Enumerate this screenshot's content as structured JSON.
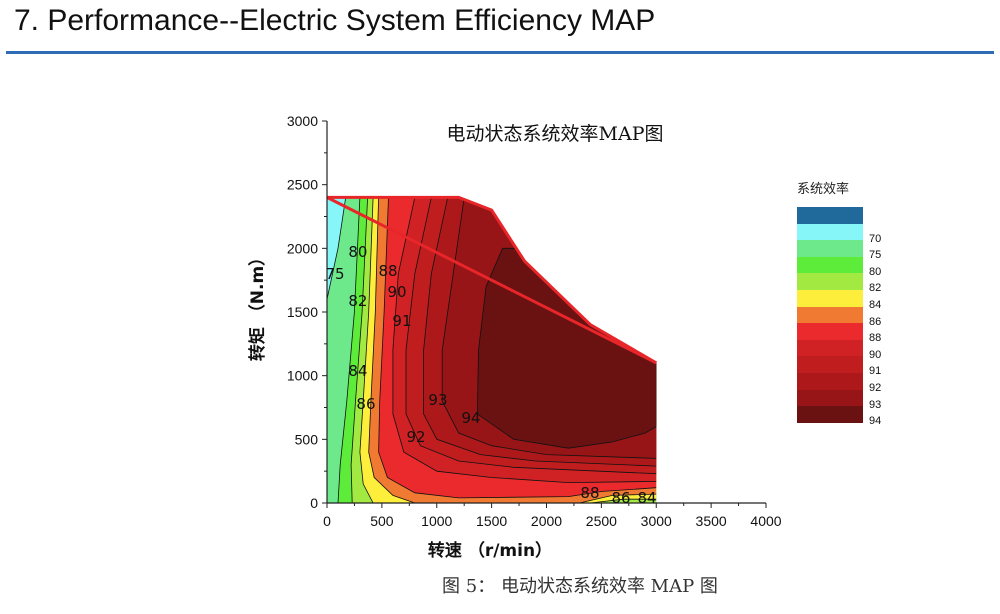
{
  "header": {
    "title": "7. Performance--Electric System Efficiency MAP",
    "rule_color": "#2e6cb5"
  },
  "caption": "图 5：  电动状态系统效率 MAP 图",
  "chart_data": {
    "type": "contour",
    "title": "电动状态系统效率MAP图",
    "xlabel": "转速 （r/min）",
    "ylabel": "转矩 （N.m）",
    "xlim": [
      0,
      4000
    ],
    "ylim": [
      0,
      3000
    ],
    "xticks": [
      "0",
      "500",
      "1000",
      "1500",
      "2000",
      "2500",
      "3000",
      "3500",
      "4000"
    ],
    "yticks": [
      "0",
      "500",
      "1000",
      "1500",
      "2000",
      "2500",
      "3000"
    ],
    "envelope": [
      [
        0,
        2400
      ],
      [
        1200,
        2400
      ],
      [
        1500,
        2300
      ],
      [
        1800,
        1900
      ],
      [
        2400,
        1400
      ],
      [
        3000,
        1100
      ],
      [
        3000,
        0
      ],
      [
        0,
        0
      ]
    ],
    "legend_title": "系统效率",
    "legend": [
      {
        "label": "",
        "color": "#1f6a9a"
      },
      {
        "label": "70",
        "color": "#86f6f8"
      },
      {
        "label": "75",
        "color": "#6de88a"
      },
      {
        "label": "80",
        "color": "#5eec3a"
      },
      {
        "label": "82",
        "color": "#a2ea42"
      },
      {
        "label": "84",
        "color": "#fdee3c"
      },
      {
        "label": "86",
        "color": "#f07a32"
      },
      {
        "label": "88",
        "color": "#ea2a2c"
      },
      {
        "label": "90",
        "color": "#d02224"
      },
      {
        "label": "91",
        "color": "#c01d1f"
      },
      {
        "label": "92",
        "color": "#ad191b"
      },
      {
        "label": "93",
        "color": "#971517"
      },
      {
        "label": "94",
        "color": "#6a1212"
      }
    ],
    "levels": [
      {
        "level": 75,
        "color": "#6de88a",
        "line": [
          [
            170,
            2400
          ],
          [
            100,
            2000
          ],
          [
            0,
            1600
          ]
        ]
      },
      {
        "level": 80,
        "color": "#5eec3a",
        "line": [
          [
            300,
            2400
          ],
          [
            250,
            1500
          ],
          [
            180,
            800
          ],
          [
            120,
            300
          ],
          [
            100,
            0
          ]
        ]
      },
      {
        "level": 82,
        "color": "#a2ea42",
        "line": [
          [
            370,
            2400
          ],
          [
            320,
            1500
          ],
          [
            260,
            800
          ],
          [
            220,
            300
          ],
          [
            230,
            0
          ]
        ]
      },
      {
        "level": 84,
        "color": "#fdee3c",
        "line": [
          [
            420,
            2400
          ],
          [
            380,
            1500
          ],
          [
            330,
            800
          ],
          [
            300,
            400
          ],
          [
            330,
            150
          ],
          [
            420,
            0
          ],
          [
            2400,
            0
          ],
          [
            2700,
            30
          ],
          [
            3000,
            30
          ]
        ]
      },
      {
        "level": 86,
        "color": "#f07a32",
        "line": [
          [
            470,
            2400
          ],
          [
            440,
            1500
          ],
          [
            400,
            800
          ],
          [
            380,
            400
          ],
          [
            430,
            200
          ],
          [
            600,
            60
          ],
          [
            800,
            0
          ],
          [
            2300,
            0
          ],
          [
            2600,
            60
          ],
          [
            3000,
            70
          ]
        ]
      },
      {
        "level": 88,
        "color": "#ea2a2c",
        "line": [
          [
            560,
            2400
          ],
          [
            520,
            1500
          ],
          [
            480,
            800
          ],
          [
            470,
            400
          ],
          [
            550,
            200
          ],
          [
            800,
            80
          ],
          [
            1200,
            40
          ],
          [
            2200,
            50
          ],
          [
            2500,
            90
          ],
          [
            3000,
            120
          ]
        ]
      },
      {
        "level": 90,
        "color": "#d02224",
        "line": [
          [
            800,
            2400
          ],
          [
            650,
            1800
          ],
          [
            600,
            1200
          ],
          [
            600,
            700
          ],
          [
            700,
            400
          ],
          [
            1000,
            250
          ],
          [
            1500,
            200
          ],
          [
            2200,
            160
          ],
          [
            3000,
            170
          ]
        ]
      },
      {
        "level": 91,
        "color": "#c01d1f",
        "line": [
          [
            950,
            2400
          ],
          [
            800,
            1800
          ],
          [
            720,
            1200
          ],
          [
            720,
            700
          ],
          [
            850,
            450
          ],
          [
            1200,
            330
          ],
          [
            1700,
            280
          ],
          [
            3000,
            230
          ]
        ]
      },
      {
        "level": 92,
        "color": "#ad191b",
        "line": [
          [
            1100,
            2400
          ],
          [
            950,
            1800
          ],
          [
            880,
            1200
          ],
          [
            880,
            700
          ],
          [
            1000,
            500
          ],
          [
            1400,
            380
          ],
          [
            1900,
            330
          ],
          [
            3000,
            290
          ]
        ]
      },
      {
        "level": 93,
        "color": "#971517",
        "line": [
          [
            1250,
            2400
          ],
          [
            1150,
            1800
          ],
          [
            1050,
            1200
          ],
          [
            1050,
            800
          ],
          [
            1200,
            550
          ],
          [
            1500,
            450
          ],
          [
            2000,
            380
          ],
          [
            3000,
            350
          ]
        ]
      },
      {
        "level": 94,
        "color": "#6a1212",
        "closed": true,
        "line": [
          [
            1600,
            2000
          ],
          [
            1450,
            1700
          ],
          [
            1380,
            1200
          ],
          [
            1370,
            700
          ],
          [
            1700,
            500
          ],
          [
            2200,
            430
          ],
          [
            2600,
            480
          ],
          [
            2900,
            550
          ],
          [
            3000,
            600
          ],
          [
            3000,
            1200
          ],
          [
            2800,
            1400
          ],
          [
            2300,
            1700
          ],
          [
            1800,
            2000
          ]
        ]
      }
    ],
    "annotations": [
      {
        "text": "75",
        "x": 73,
        "y": 1807
      },
      {
        "text": "80",
        "x": 282,
        "y": 1980
      },
      {
        "text": "88",
        "x": 556,
        "y": 1830
      },
      {
        "text": "90",
        "x": 638,
        "y": 1665
      },
      {
        "text": "82",
        "x": 282,
        "y": 1595
      },
      {
        "text": "91",
        "x": 683,
        "y": 1437
      },
      {
        "text": "84",
        "x": 282,
        "y": 1045
      },
      {
        "text": "86",
        "x": 355,
        "y": 785
      },
      {
        "text": "93",
        "x": 1011,
        "y": 817
      },
      {
        "text": "94",
        "x": 1312,
        "y": 675
      },
      {
        "text": "92",
        "x": 811,
        "y": 526
      },
      {
        "text": "88",
        "x": 2396,
        "y": 86
      },
      {
        "text": "86",
        "x": 2679,
        "y": 47
      },
      {
        "text": "84",
        "x": 2916,
        "y": 47
      }
    ]
  }
}
